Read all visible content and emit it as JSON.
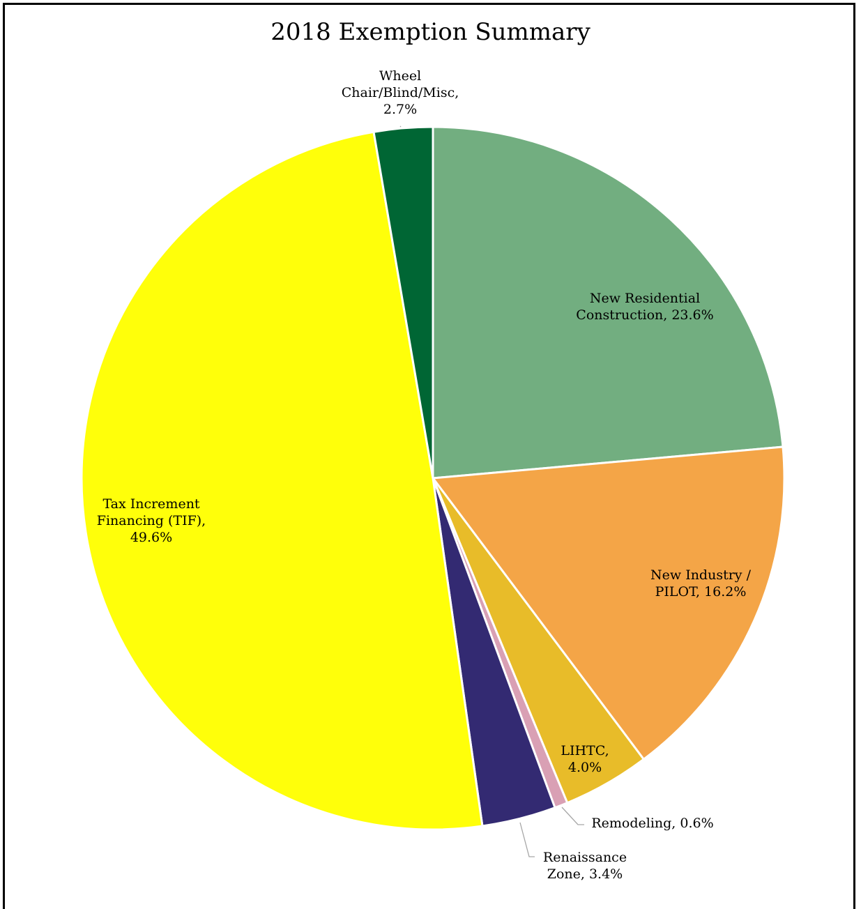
{
  "chart_data": {
    "type": "pie",
    "title": "2018 Exemption Summary",
    "slices": [
      {
        "label": "New Residential Construction",
        "value": 23.6,
        "display": "23.6%",
        "color": "#72ae80"
      },
      {
        "label": "New Industry / PILOT",
        "value": 16.2,
        "display": "16.2%",
        "color": "#f4a547"
      },
      {
        "label": "LIHTC",
        "value": 4.0,
        "display": "4.0%",
        "color": "#e8bc29"
      },
      {
        "label": "Remodeling",
        "value": 0.6,
        "display": "0.6%",
        "color": "#d9a0b4"
      },
      {
        "label": "Renaissance Zone",
        "value": 3.4,
        "display": "3.4%",
        "color": "#332a72"
      },
      {
        "label": "Tax Increment Financing (TIF)",
        "value": 49.6,
        "display": "49.6%",
        "color": "#ffff0a"
      },
      {
        "label": "Wheel Chair/Blind/Misc",
        "value": 2.7,
        "display": "2.7%",
        "color": "#006634"
      }
    ],
    "legend": "none"
  }
}
